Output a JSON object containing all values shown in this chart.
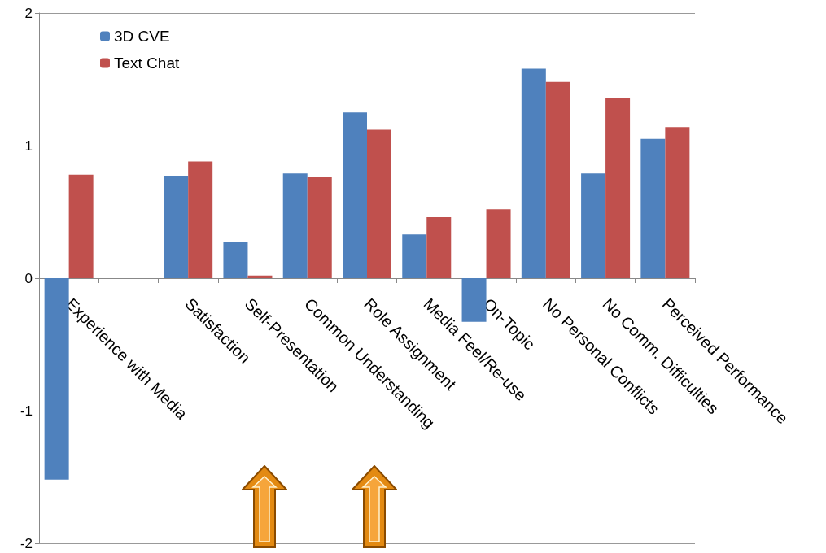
{
  "chart_data": {
    "type": "bar",
    "categories": [
      "Experience with Media",
      null,
      "Satisfaction",
      "Self-Presentation",
      "Common Understanding",
      "Role Assignment",
      "Media Feel/Re-use",
      "On-Topic",
      "No Personal Conflicts",
      "No Comm. Difficulties",
      "Perceived Performance"
    ],
    "series": [
      {
        "name": "3D CVE",
        "color": "#4f81bd",
        "values": [
          -1.52,
          null,
          0.77,
          0.27,
          0.79,
          1.25,
          0.33,
          -0.33,
          1.58,
          0.79,
          1.05
        ]
      },
      {
        "name": "Text Chat",
        "color": "#c0504d",
        "values": [
          0.78,
          null,
          0.88,
          0.02,
          0.76,
          1.12,
          0.46,
          0.52,
          1.48,
          1.36,
          1.14
        ]
      }
    ],
    "ylim": [
      -2,
      2
    ],
    "yticks": [
      -2,
      -1,
      0,
      1,
      2
    ],
    "grid": "y",
    "legend": "top left"
  }
}
